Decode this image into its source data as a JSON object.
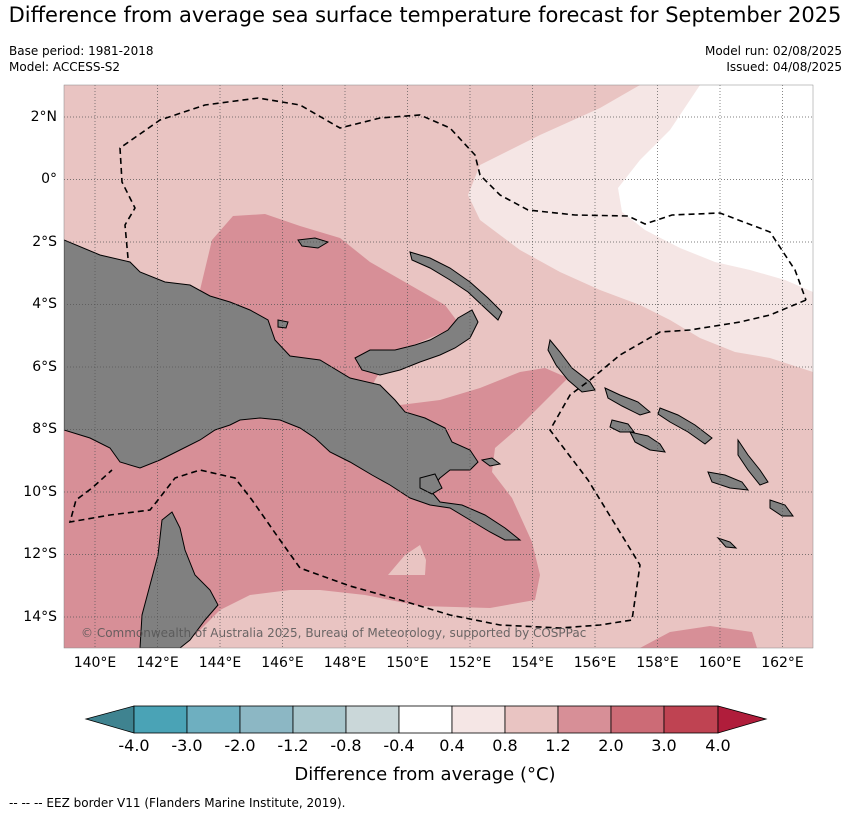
{
  "title": "Difference from average sea surface temperature forecast for September 2025",
  "meta_left": [
    "Base period: 1981-2018",
    "Model: ACCESS-S2"
  ],
  "meta_right": [
    "Model run: 02/08/2025",
    "Issued: 04/08/2025"
  ],
  "map": {
    "lon_range": [
      139,
      163
    ],
    "lat_range": [
      -15,
      3
    ],
    "lat_labels": [
      "2°N",
      "0°",
      "2°S",
      "4°S",
      "6°S",
      "8°S",
      "10°S",
      "12°S",
      "14°S"
    ],
    "lon_labels": [
      "140°E",
      "142°E",
      "144°E",
      "146°E",
      "148°E",
      "150°E",
      "152°E",
      "154°E",
      "156°E",
      "158°E",
      "160°E",
      "162°E"
    ],
    "land_color": "#808080",
    "grid": true,
    "copyright": "© Commonwealth of Australia 2025, Bureau of Meteorology, supported by COSPPac"
  },
  "colorbar": {
    "title": "Difference from average (°C)",
    "tick_labels": [
      "-4.0",
      "-3.0",
      "-2.0",
      "-1.2",
      "-0.8",
      "-0.4",
      "0.4",
      "0.8",
      "1.2",
      "2.0",
      "3.0",
      "4.0"
    ],
    "colors": [
      "#3f8390",
      "#4aa3b6",
      "#6eafc0",
      "#8cb7c4",
      "#a8c6cc",
      "#cad7d9",
      "#ffffff",
      "#f5e6e5",
      "#e9c4c2",
      "#d78f97",
      "#cc6b76",
      "#bf4352",
      "#b01d3b"
    ]
  },
  "footer": "--  --  -- EEZ border V11 (Flanders Marine Institute, 2019)."
}
